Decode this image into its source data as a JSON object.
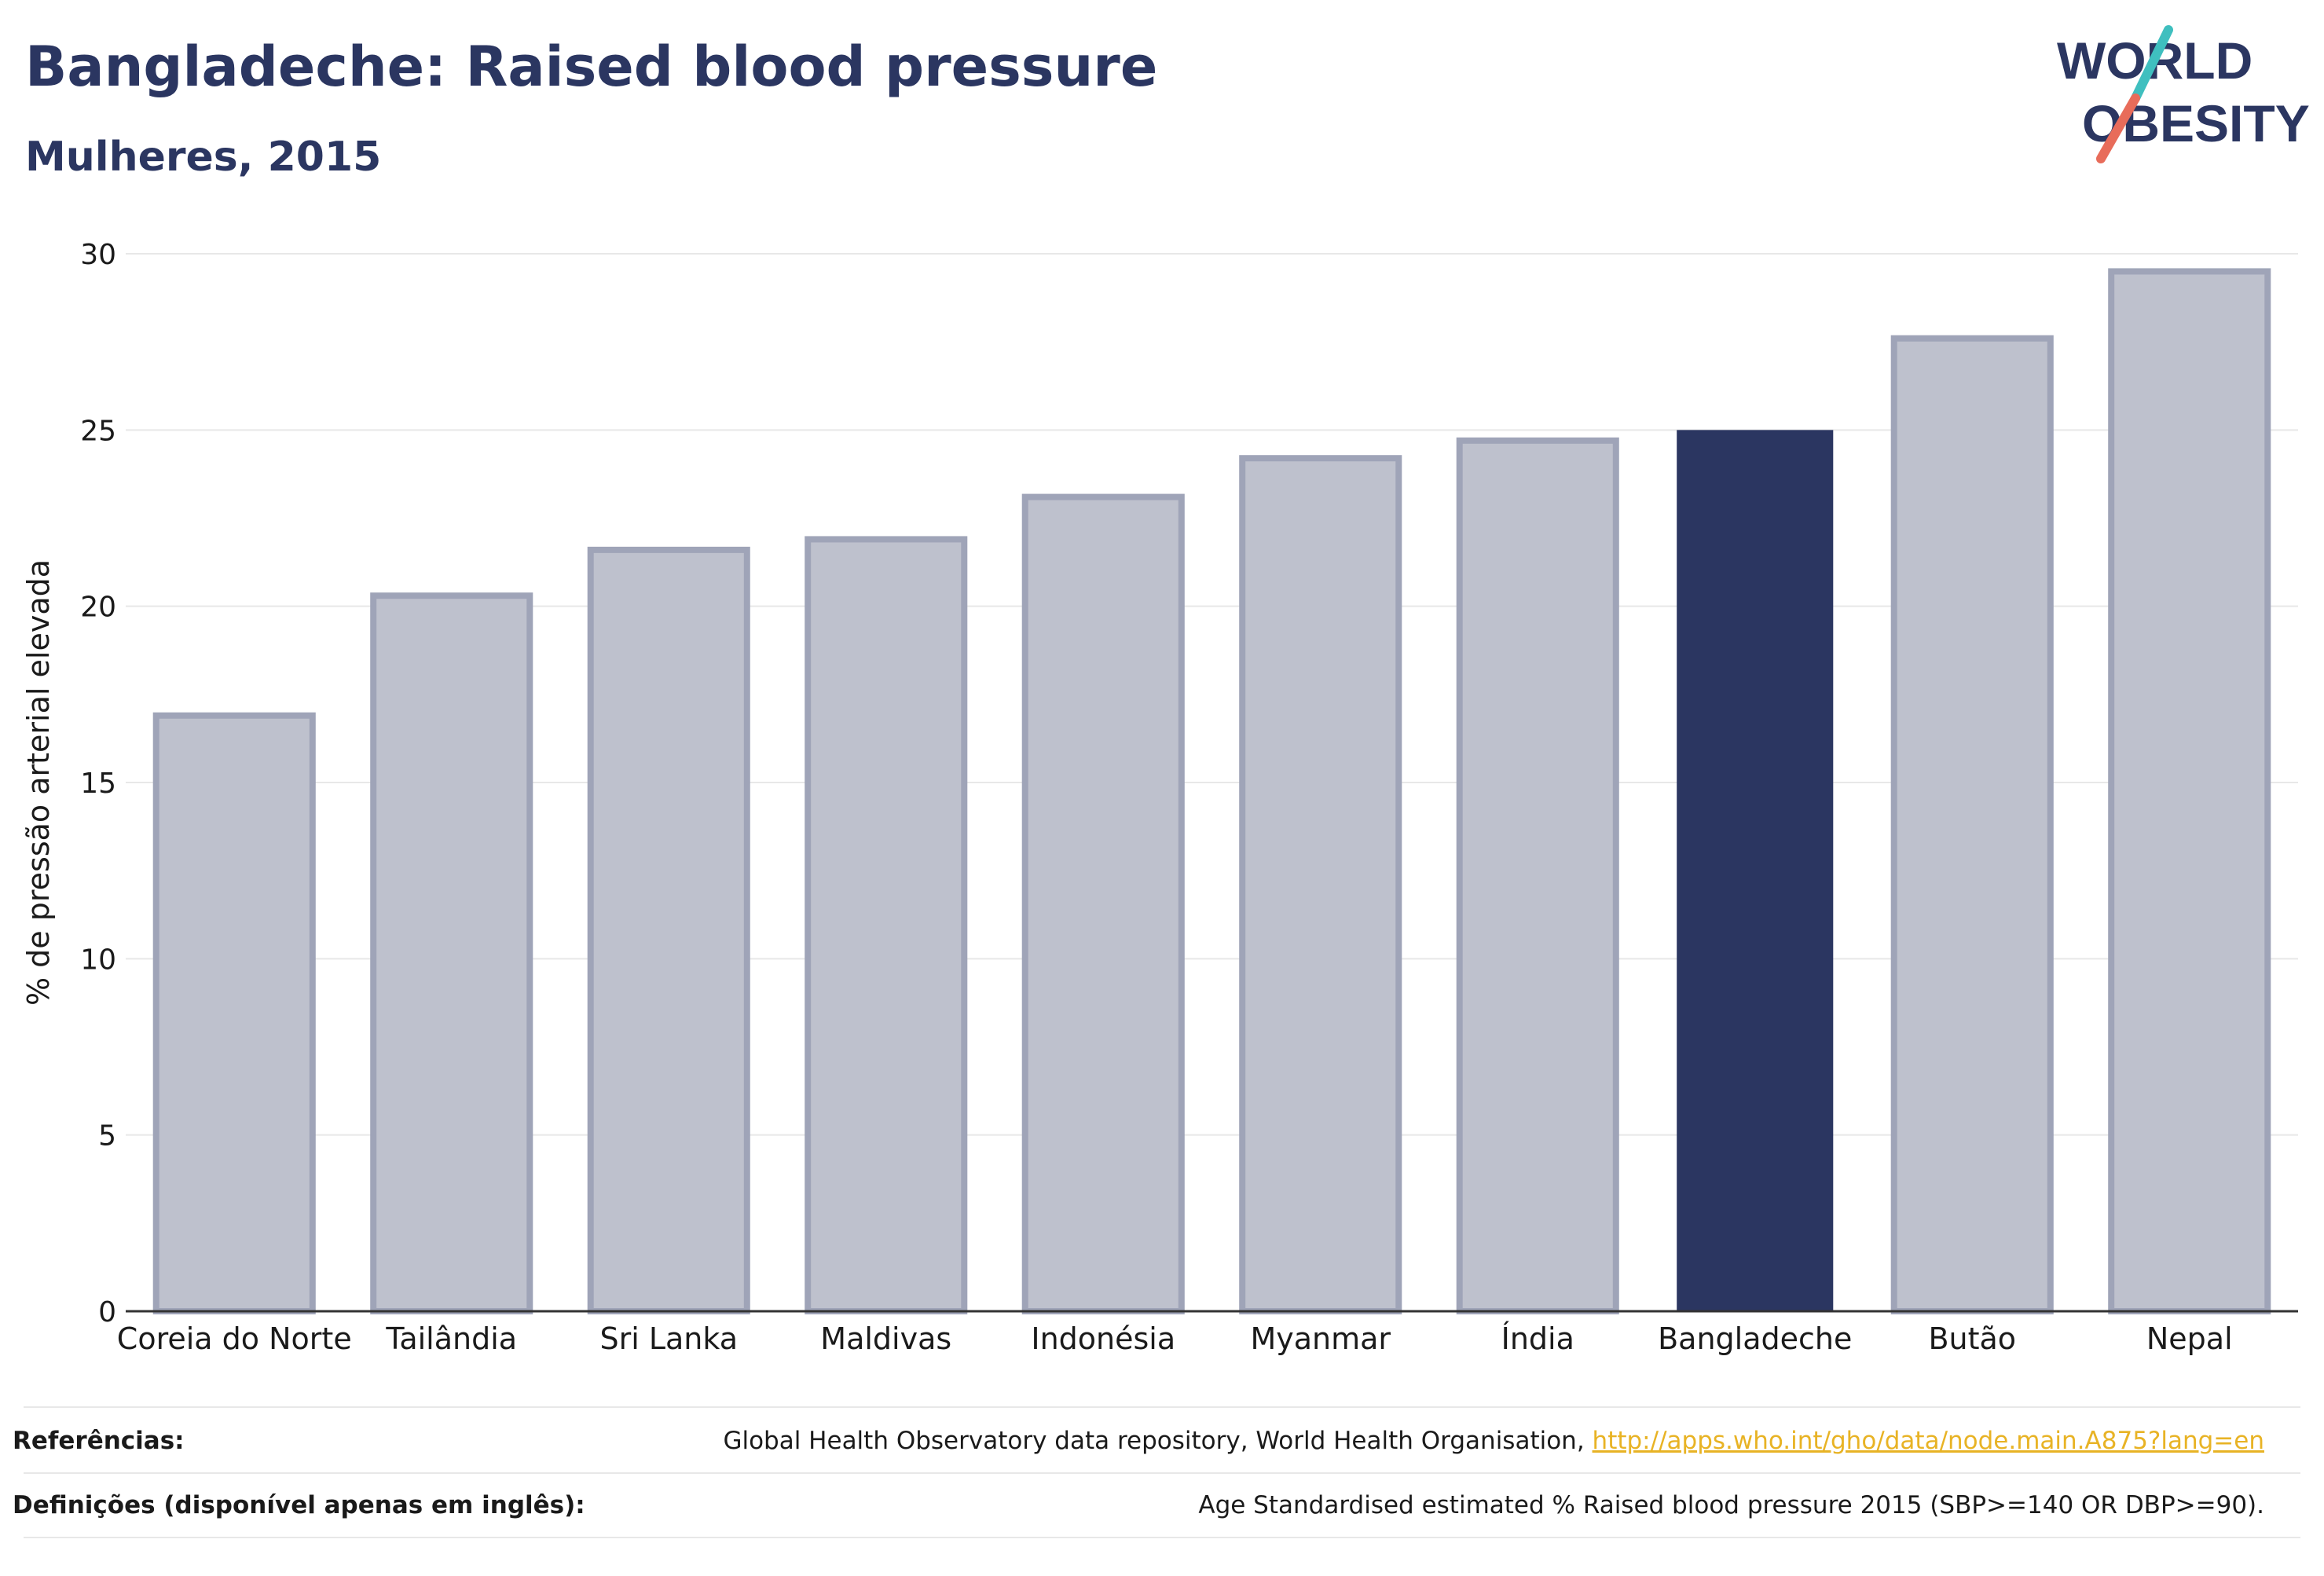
{
  "header": {
    "title": "Bangladeche: Raised blood pressure",
    "subtitle": "Mulheres, 2015"
  },
  "logo": {
    "line1": "WORLD",
    "line2": "OBESITY",
    "slash_colors": [
      "#3fbfbf",
      "#e86c5a"
    ],
    "text_color": "#2b3661"
  },
  "chart_data": {
    "type": "bar",
    "categories": [
      "Coreia do Norte",
      "Tailândia",
      "Sri Lanka",
      "Maldivas",
      "Indonésia",
      "Myanmar",
      "Índia",
      "Bangladeche",
      "Butão",
      "Nepal"
    ],
    "values": [
      16.9,
      20.3,
      21.6,
      21.9,
      23.1,
      24.2,
      24.7,
      25.0,
      27.6,
      29.5
    ],
    "highlight": "Bangladeche",
    "ylabel": "% de pressão arterial elevada",
    "xlabel": "",
    "ylim": [
      0,
      30
    ],
    "yticks": [
      0,
      5,
      10,
      15,
      20,
      25,
      30
    ],
    "grid": true,
    "colors": {
      "default_fill": "#bec1cd",
      "default_stroke": "#9fa4b8",
      "highlight_fill": "#2b3661",
      "grid": "#e8e8e8",
      "axis": "#333333"
    }
  },
  "footer": {
    "references_label": "Referências:",
    "references_text": "Global Health Observatory data repository, World Health Organisation, ",
    "references_link": "http://apps.who.int/gho/data/node.main.A875?lang=en",
    "definitions_label": "Definições (disponível apenas em inglês):",
    "definitions_text": "Age Standardised estimated % Raised blood pressure 2015 (SBP>=140 OR DBP>=90)."
  }
}
